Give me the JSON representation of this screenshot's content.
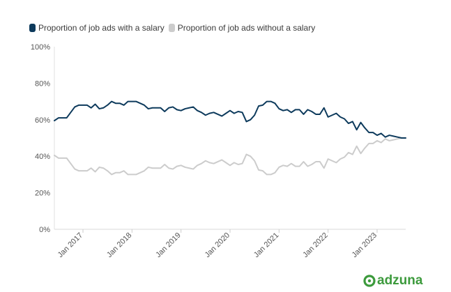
{
  "legend": [
    {
      "label": "Proportion of job ads with a salary",
      "color": "#0d3a5c"
    },
    {
      "label": "Proportion of job ads without a salary",
      "color": "#cccccc"
    }
  ],
  "brand": {
    "name": "adzuna",
    "color": "#3c9a3c"
  },
  "chart_data": {
    "type": "line",
    "title": "",
    "xlabel": "",
    "ylabel": "",
    "ylim": [
      0,
      100
    ],
    "y_ticks": [
      "0%",
      "20%",
      "40%",
      "60%",
      "80%",
      "100%"
    ],
    "x_ticks": [
      {
        "label": "Jan 2017",
        "index": 7
      },
      {
        "label": "Jan 2018",
        "index": 19
      },
      {
        "label": "Jan 2019",
        "index": 31
      },
      {
        "label": "Jan 2020",
        "index": 43
      },
      {
        "label": "Jan 2021",
        "index": 55
      },
      {
        "label": "Jan 2022",
        "index": 67
      },
      {
        "label": "Jan 2023",
        "index": 79
      }
    ],
    "x_start": "Jun 2016",
    "x_end": "Aug 2023",
    "series": [
      {
        "name": "Proportion of job ads with a salary",
        "color": "#0d3a5c",
        "values": [
          59.5,
          61,
          61,
          61,
          64,
          67,
          68,
          68,
          68,
          66.5,
          68.5,
          66,
          66.5,
          68,
          70,
          69,
          69,
          68,
          70,
          70,
          70,
          69,
          68,
          66,
          66.5,
          66.5,
          66.5,
          64.5,
          66.5,
          67,
          65.5,
          65,
          66,
          66.5,
          67,
          65,
          64,
          62.5,
          63.5,
          64,
          63,
          62,
          63.5,
          65,
          63.5,
          64.5,
          64,
          59,
          60,
          62.5,
          67.5,
          68,
          70,
          70,
          69,
          66,
          65,
          65.5,
          64,
          65.5,
          65.5,
          63,
          65.5,
          64.5,
          63,
          63,
          66.5,
          61.5,
          62.5,
          63.5,
          61.5,
          60.5,
          58,
          59,
          54.5,
          58.5,
          55.5,
          53,
          53,
          51.5,
          52.5,
          50.5,
          51.5,
          51,
          50.5,
          50,
          50
        ]
      },
      {
        "name": "Proportion of job ads without a salary",
        "color": "#cccccc",
        "values": [
          40.5,
          39,
          39,
          39,
          36,
          33,
          32,
          32,
          32,
          33.5,
          31.5,
          34,
          33.5,
          32,
          30,
          31,
          31,
          32,
          30,
          30,
          30,
          31,
          32,
          34,
          33.5,
          33.5,
          33.5,
          35.5,
          33.5,
          33,
          34.5,
          35,
          34,
          33.5,
          33,
          35,
          36,
          37.5,
          36.5,
          36,
          37,
          38,
          36.5,
          35,
          36.5,
          35.5,
          36,
          41,
          40,
          37.5,
          32.5,
          32,
          30,
          30,
          31,
          34,
          35,
          34.5,
          36,
          34.5,
          34.5,
          37,
          34.5,
          35.5,
          37,
          37,
          33.5,
          38.5,
          37.5,
          36.5,
          38.5,
          39.5,
          42,
          41,
          45.5,
          41.5,
          44.5,
          47,
          47,
          48.5,
          47.5,
          49.5,
          48.5,
          49,
          49.5,
          50,
          50
        ]
      }
    ]
  }
}
